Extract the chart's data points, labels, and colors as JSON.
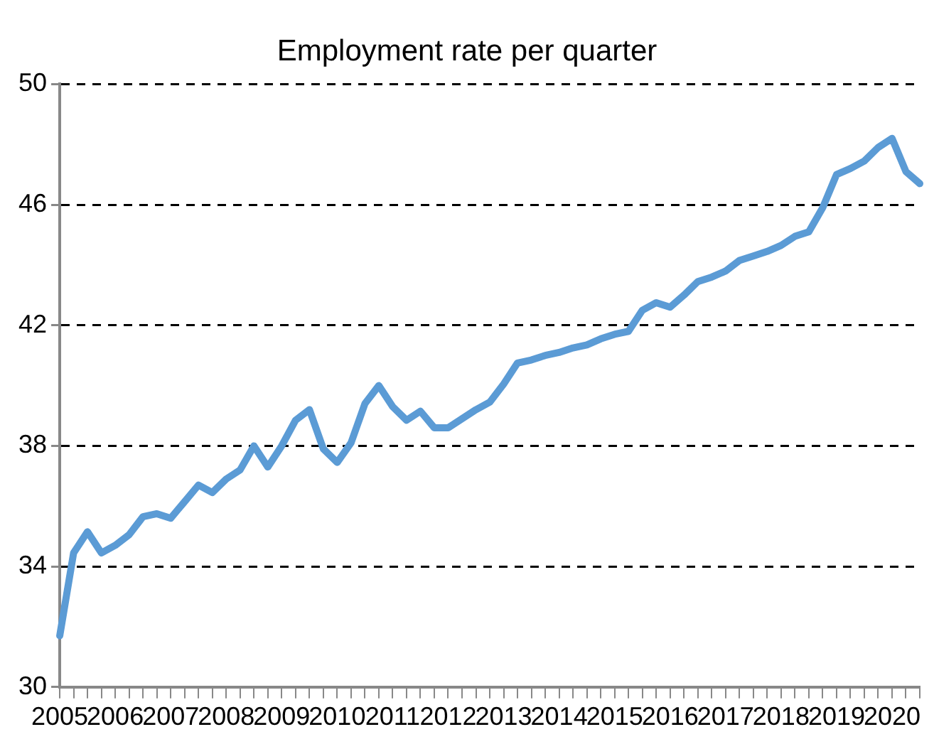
{
  "chart_data": {
    "type": "line",
    "title": "Employment rate per quarter",
    "categories": [
      "2005",
      null,
      null,
      null,
      "2006",
      null,
      null,
      null,
      "2007",
      null,
      null,
      null,
      "2008",
      null,
      null,
      null,
      "2009",
      null,
      null,
      null,
      "2010",
      null,
      null,
      null,
      "2011",
      null,
      null,
      null,
      "2012",
      null,
      null,
      null,
      "2013",
      null,
      null,
      null,
      "2014",
      null,
      null,
      null,
      "2015",
      null,
      null,
      null,
      "2016",
      null,
      null,
      null,
      "2017",
      null,
      null,
      null,
      "2018",
      null,
      null,
      null,
      "2019",
      null,
      null,
      null,
      "2020",
      null,
      null
    ],
    "series": [
      {
        "color": "#5b9bd5",
        "values": [
          31.7,
          34.45,
          35.15,
          34.45,
          34.7,
          35.05,
          35.65,
          35.75,
          35.6,
          36.15,
          36.7,
          36.45,
          36.9,
          37.2,
          38.0,
          37.3,
          38.0,
          38.85,
          39.2,
          37.9,
          37.45,
          38.1,
          39.4,
          40.0,
          39.3,
          38.85,
          39.15,
          38.6,
          38.6,
          38.9,
          39.2,
          39.45,
          40.05,
          40.75,
          40.85,
          41.0,
          41.1,
          41.25,
          41.35,
          41.55,
          41.7,
          41.8,
          42.5,
          42.75,
          42.6,
          43.0,
          43.45,
          43.6,
          43.8,
          44.15,
          44.3,
          44.45,
          44.65,
          44.95,
          45.1,
          45.9,
          47.0,
          47.2,
          47.45,
          47.9,
          48.2,
          47.1,
          46.7
        ]
      }
    ],
    "ylim": [
      30,
      50
    ],
    "yticks": [
      30,
      34,
      38,
      42,
      46,
      50
    ],
    "grid": "y",
    "line_style": "solid",
    "marker": "none",
    "legend": false
  }
}
